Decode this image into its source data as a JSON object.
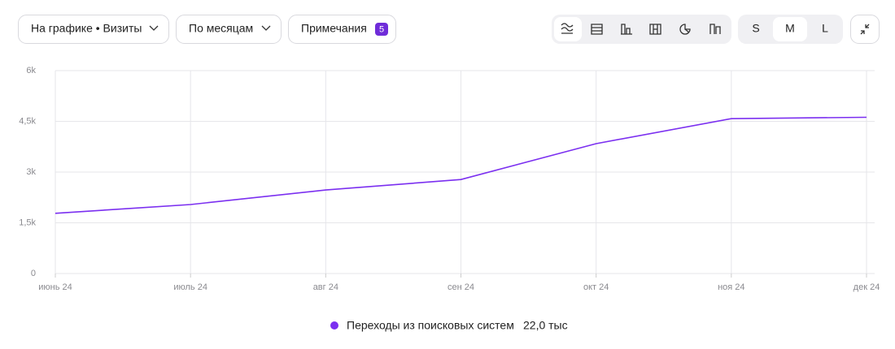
{
  "toolbar": {
    "metric_button": "На графике • Визиты",
    "period_button": "По месяцам",
    "notes_button": "Примечания",
    "notes_count": "5",
    "sizes": [
      "S",
      "M",
      "L"
    ]
  },
  "chart_data": {
    "type": "line",
    "categories": [
      "июнь 24",
      "июль 24",
      "авг 24",
      "сен 24",
      "окт 24",
      "ноя 24",
      "дек 24"
    ],
    "series": [
      {
        "name": "Переходы из поисковых систем",
        "color": "#7b2ff0",
        "values": [
          1780,
          2040,
          2470,
          2780,
          3840,
          4580,
          4620
        ],
        "total_label": "22,0 тыс"
      }
    ],
    "ylim": [
      0,
      6000
    ],
    "yticks": [
      0,
      {
        "value": 1500,
        "label": "1,5k"
      },
      {
        "value": 3000,
        "label": "3k"
      },
      {
        "value": 4500,
        "label": "4,5k"
      },
      {
        "value": 6000,
        "label": "6k"
      }
    ],
    "grid": true
  }
}
